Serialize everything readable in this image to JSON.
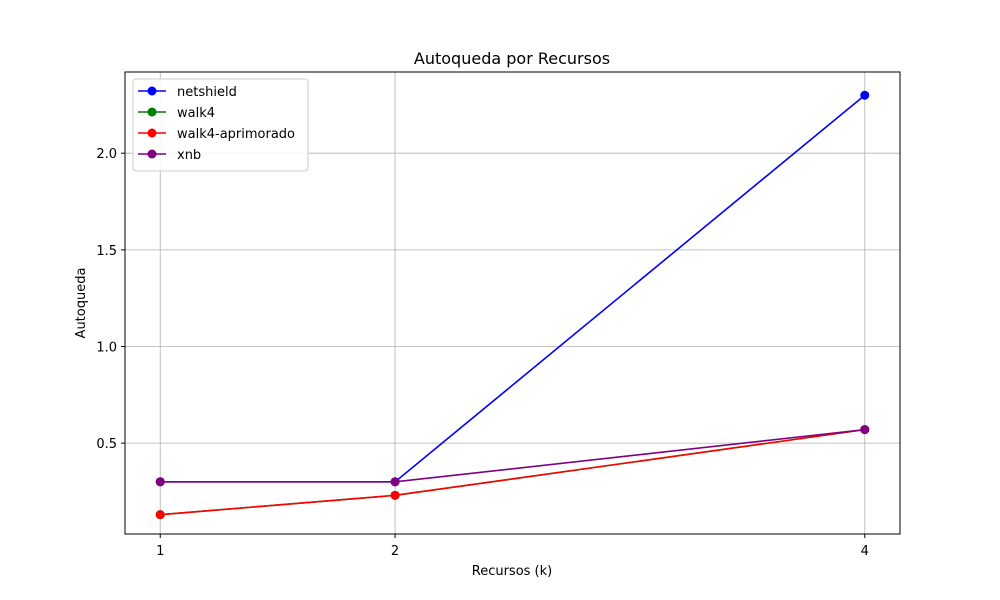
{
  "chart_data": {
    "type": "line",
    "title": "Autoqueda por Recursos",
    "xlabel": "Recursos (k)",
    "ylabel": "Autoqueda",
    "x": [
      1,
      2,
      4
    ],
    "xticks": [
      "1",
      "2",
      "4"
    ],
    "yticks": [
      0.5,
      1.0,
      1.5,
      2.0
    ],
    "ytick_labels": [
      "0.5",
      "1.0",
      "1.5",
      "2.0"
    ],
    "xlim": [
      0.85,
      4.15
    ],
    "ylim": [
      0.03,
      2.42
    ],
    "grid": true,
    "legend_position": "upper-left",
    "series": [
      {
        "name": "netshield",
        "color": "#0000ff",
        "values": [
          0.3,
          0.3,
          2.3
        ]
      },
      {
        "name": "walk4",
        "color": "#008000",
        "values": [
          0.13,
          0.23,
          0.57
        ]
      },
      {
        "name": "walk4-aprimorado",
        "color": "#ff0000",
        "values": [
          0.13,
          0.23,
          0.57
        ]
      },
      {
        "name": "xnb",
        "color": "#800080",
        "values": [
          0.3,
          0.3,
          0.57
        ]
      }
    ]
  }
}
